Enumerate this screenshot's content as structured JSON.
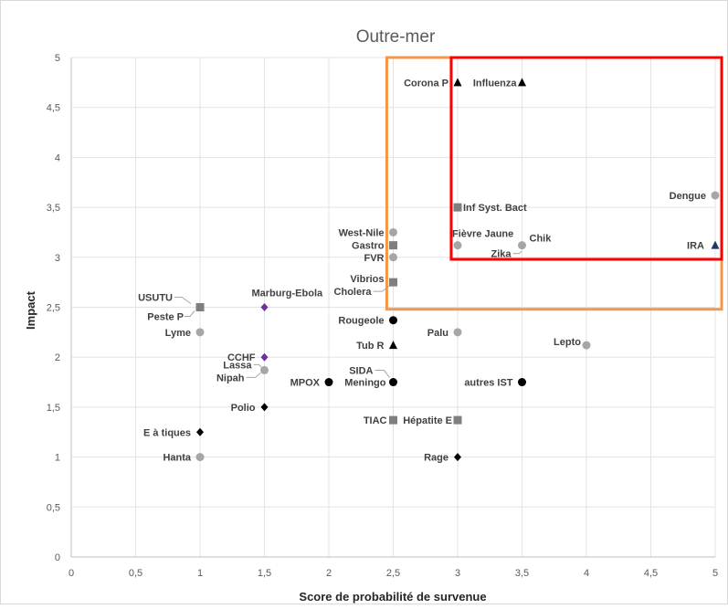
{
  "chart_data": {
    "type": "scatter",
    "title": "Outre-mer",
    "xlabel": "Score de probabilité de survenue",
    "ylabel": "Impact",
    "xlim": [
      0,
      5
    ],
    "ylim": [
      0,
      5
    ],
    "x_ticks": [
      "0",
      "0,5",
      "1",
      "1,5",
      "2",
      "2,5",
      "3",
      "3,5",
      "4",
      "4,5",
      "5"
    ],
    "y_ticks": [
      "0",
      "0,5",
      "1",
      "1,5",
      "2",
      "2,5",
      "3",
      "3,5",
      "4",
      "4,5",
      "5"
    ],
    "grid": "both",
    "legend": "none",
    "colors": {
      "circle_gray": "#a6a6a6",
      "circle_black": "#000000",
      "square": "#7f7f7f",
      "triangle": "#000000",
      "triangle_dark_blue": "#1f3864",
      "diamond_black": "#000000",
      "diamond_purple": "#7030a0",
      "box_orange": "#f79646",
      "box_red": "#ff0000"
    },
    "highlight_boxes": [
      {
        "name": "orange",
        "x": [
          2.45,
          5.05
        ],
        "y": [
          2.48,
          5.0
        ]
      },
      {
        "name": "red",
        "x": [
          2.95,
          5.05
        ],
        "y": [
          2.98,
          5.0
        ]
      }
    ],
    "points": [
      {
        "label": "Corona P",
        "x": 3.0,
        "y": 4.75,
        "marker": "triangle",
        "color": "#000000"
      },
      {
        "label": "Influenza",
        "x": 3.5,
        "y": 4.75,
        "marker": "triangle",
        "color": "#000000"
      },
      {
        "label": "Dengue",
        "x": 5.0,
        "y": 3.62,
        "marker": "circle",
        "color": "#a6a6a6"
      },
      {
        "label": "Inf Syst. Bact",
        "x": 3.0,
        "y": 3.5,
        "marker": "square",
        "color": "#7f7f7f"
      },
      {
        "label": "West-Nile",
        "x": 2.5,
        "y": 3.25,
        "marker": "circle",
        "color": "#a6a6a6"
      },
      {
        "label": "Gastro",
        "x": 2.5,
        "y": 3.12,
        "marker": "square",
        "color": "#7f7f7f"
      },
      {
        "label": "FVR",
        "x": 2.5,
        "y": 3.0,
        "marker": "circle",
        "color": "#a6a6a6"
      },
      {
        "label": "Fièvre Jaune",
        "x": 3.0,
        "y": 3.12,
        "marker": "circle",
        "color": "#a6a6a6"
      },
      {
        "label": "Chik",
        "x": 3.5,
        "y": 3.12,
        "marker": "circle",
        "color": "#a6a6a6"
      },
      {
        "label": "Zika",
        "x": 3.5,
        "y": 3.12,
        "marker": "circle",
        "color": "#a6a6a6"
      },
      {
        "label": "IRA",
        "x": 5.0,
        "y": 3.12,
        "marker": "triangle",
        "color": "#1f3864"
      },
      {
        "label": "Vibrios",
        "x": 2.5,
        "y": 2.75,
        "marker": "square",
        "color": "#7f7f7f"
      },
      {
        "label": "Cholera",
        "x": 2.5,
        "y": 2.75,
        "marker": "square",
        "color": "#7f7f7f"
      },
      {
        "label": "USUTU",
        "x": 1.0,
        "y": 2.5,
        "marker": "circle",
        "color": "#a6a6a6"
      },
      {
        "label": "Peste P",
        "x": 1.0,
        "y": 2.5,
        "marker": "square",
        "color": "#7f7f7f"
      },
      {
        "label": "Marburg-Ebola",
        "x": 1.5,
        "y": 2.5,
        "marker": "diamond",
        "color": "#7030a0"
      },
      {
        "label": "Rougeole",
        "x": 2.5,
        "y": 2.37,
        "marker": "circle",
        "color": "#000000"
      },
      {
        "label": "Lyme",
        "x": 1.0,
        "y": 2.25,
        "marker": "circle",
        "color": "#a6a6a6"
      },
      {
        "label": "Palu",
        "x": 3.0,
        "y": 2.25,
        "marker": "circle",
        "color": "#a6a6a6"
      },
      {
        "label": "Tub R",
        "x": 2.5,
        "y": 2.12,
        "marker": "triangle",
        "color": "#000000"
      },
      {
        "label": "Lepto",
        "x": 4.0,
        "y": 2.12,
        "marker": "circle",
        "color": "#a6a6a6"
      },
      {
        "label": "CCHF",
        "x": 1.5,
        "y": 2.0,
        "marker": "diamond",
        "color": "#7030a0"
      },
      {
        "label": "Lassa",
        "x": 1.5,
        "y": 1.87,
        "marker": "circle",
        "color": "#a6a6a6"
      },
      {
        "label": "Nipah",
        "x": 1.5,
        "y": 1.87,
        "marker": "circle",
        "color": "#a6a6a6"
      },
      {
        "label": "SIDA",
        "x": 2.5,
        "y": 1.75,
        "marker": "circle",
        "color": "#000000"
      },
      {
        "label": "MPOX",
        "x": 2.0,
        "y": 1.75,
        "marker": "circle",
        "color": "#000000"
      },
      {
        "label": "Meningo",
        "x": 2.5,
        "y": 1.75,
        "marker": "circle",
        "color": "#000000"
      },
      {
        "label": "autres IST",
        "x": 3.5,
        "y": 1.75,
        "marker": "circle",
        "color": "#000000"
      },
      {
        "label": "Polio",
        "x": 1.5,
        "y": 1.5,
        "marker": "diamond",
        "color": "#000000"
      },
      {
        "label": "TIAC",
        "x": 2.5,
        "y": 1.37,
        "marker": "square",
        "color": "#7f7f7f"
      },
      {
        "label": "Hépatite E",
        "x": 3.0,
        "y": 1.37,
        "marker": "square",
        "color": "#7f7f7f"
      },
      {
        "label": "E à tiques",
        "x": 1.0,
        "y": 1.25,
        "marker": "diamond",
        "color": "#000000"
      },
      {
        "label": "Hanta",
        "x": 1.0,
        "y": 1.0,
        "marker": "circle",
        "color": "#a6a6a6"
      },
      {
        "label": "Rage",
        "x": 3.0,
        "y": 1.0,
        "marker": "diamond",
        "color": "#000000"
      }
    ]
  }
}
